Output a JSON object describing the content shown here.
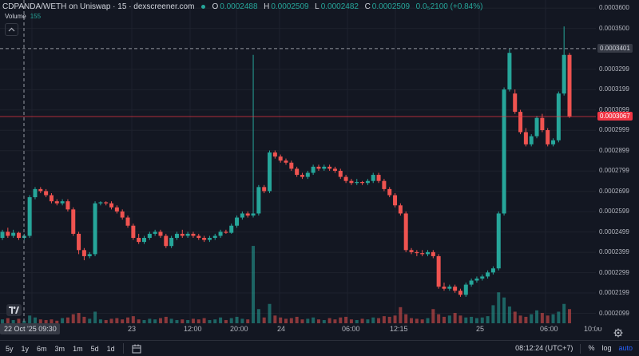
{
  "header": {
    "pair": "CDPANDA/WETH on Uniswap · 15 · dexscreener.com",
    "o_label": "O",
    "o_val": "0.0002488",
    "h_label": "H",
    "h_val": "0.0002509",
    "l_label": "L",
    "l_val": "0.0002482",
    "c_label": "C",
    "c_val": "0.0002509",
    "change": "0.0₅2100 (+0.84%)"
  },
  "volume": {
    "label": "Volume",
    "value": "155"
  },
  "price_axis": {
    "ticks": [
      "0.0003600",
      "0.0003500",
      "0.0003299",
      "0.0003199",
      "0.0003099",
      "0.0002999",
      "0.0002899",
      "0.0002799",
      "0.0002699",
      "0.0002599",
      "0.0002499",
      "0.0002399",
      "0.0002299",
      "0.0002199",
      "0.0002099"
    ],
    "crosshair_tag": "0.0003401",
    "last_price_tag": "0.0003067"
  },
  "time_axis": {
    "labels": [
      "23",
      "12:00",
      "20:00",
      "24",
      "06:00",
      "12:15",
      "25",
      "06:00",
      "10:00"
    ],
    "crosshair_date": "22 Oct '25   09:30"
  },
  "bottom_bar": {
    "ranges": [
      "5y",
      "1y",
      "6m",
      "3m",
      "1m",
      "5d",
      "1d"
    ],
    "clock": "08:12:24 (UTC+7)",
    "percent": "%",
    "log": "log",
    "auto": "auto"
  },
  "colors": {
    "up": "#26a69a",
    "down": "#ef5350",
    "bg": "#131722",
    "grid": "#1e222d",
    "last": "#f23645"
  },
  "chart_data": {
    "type": "candlestick",
    "y_range": [
      0.000205,
      0.000364
    ],
    "candles": [
      [
        0.000247,
        0.000251,
        0.000246,
        0.00025
      ],
      [
        0.00025,
        0.000252,
        0.000247,
        0.000248
      ],
      [
        0.000248,
        0.000251,
        0.000247,
        0.0002495
      ],
      [
        0.0002495,
        0.00025,
        0.000246,
        0.000247
      ],
      [
        0.000247,
        0.000249,
        0.000246,
        0.000248
      ],
      [
        0.000248,
        0.000268,
        0.000247,
        0.000267
      ],
      [
        0.000267,
        0.000272,
        0.000266,
        0.000271
      ],
      [
        0.000271,
        0.000272,
        0.000269,
        0.00027
      ],
      [
        0.00027,
        0.000271,
        0.000267,
        0.000268
      ],
      [
        0.000268,
        0.000269,
        0.000264,
        0.000265
      ],
      [
        0.000265,
        0.000266,
        0.000263,
        0.000264
      ],
      [
        0.000264,
        0.000266,
        0.000263,
        0.000265
      ],
      [
        0.000265,
        0.000266,
        0.00026,
        0.000261
      ],
      [
        0.000261,
        0.000262,
        0.000248,
        0.000249
      ],
      [
        0.000249,
        0.00025,
        0.000239,
        0.000241
      ],
      [
        0.000241,
        0.000242,
        0.000236,
        0.000238
      ],
      [
        0.000238,
        0.00024,
        0.000237,
        0.000239
      ],
      [
        0.000239,
        0.000265,
        0.000238,
        0.000264
      ],
      [
        0.000264,
        0.000265,
        0.000263,
        0.0002645
      ],
      [
        0.0002645,
        0.000265,
        0.000263,
        0.000264
      ],
      [
        0.000264,
        0.000265,
        0.000261,
        0.000262
      ],
      [
        0.000262,
        0.000263,
        0.000259,
        0.00026
      ],
      [
        0.00026,
        0.000261,
        0.000256,
        0.000257
      ],
      [
        0.000257,
        0.000258,
        0.000252,
        0.000253
      ],
      [
        0.000253,
        0.000254,
        0.000246,
        0.000247
      ],
      [
        0.000247,
        0.000249,
        0.000244,
        0.000245
      ],
      [
        0.000245,
        0.000248,
        0.000244,
        0.000247
      ],
      [
        0.000247,
        0.00025,
        0.000246,
        0.000249
      ],
      [
        0.000249,
        0.000251,
        0.000248,
        0.00025
      ],
      [
        0.00025,
        0.000251,
        0.000247,
        0.000248
      ],
      [
        0.000248,
        0.000249,
        0.000242,
        0.000243
      ],
      [
        0.000243,
        0.000248,
        0.000242,
        0.000247
      ],
      [
        0.000247,
        0.00025,
        0.000246,
        0.000249
      ],
      [
        0.000249,
        0.000251,
        0.000247,
        0.000248
      ],
      [
        0.000248,
        0.00025,
        0.000247,
        0.000249
      ],
      [
        0.000249,
        0.00025,
        0.000247,
        0.000248
      ],
      [
        0.000248,
        0.000249,
        0.000246,
        0.000247
      ],
      [
        0.000247,
        0.000248,
        0.000245,
        0.000246
      ],
      [
        0.000246,
        0.000248,
        0.000245,
        0.000247
      ],
      [
        0.000247,
        0.000249,
        0.000246,
        0.000248
      ],
      [
        0.000248,
        0.000251,
        0.000247,
        0.00025
      ],
      [
        0.00025,
        0.000251,
        0.000249,
        0.0002495
      ],
      [
        0.0002495,
        0.000254,
        0.000249,
        0.000253
      ],
      [
        0.000253,
        0.000258,
        0.000252,
        0.000257
      ],
      [
        0.000257,
        0.00026,
        0.000256,
        0.000259
      ],
      [
        0.000259,
        0.00026,
        0.000257,
        0.000258
      ],
      [
        0.000258,
        0.000337,
        0.000257,
        0.000259
      ],
      [
        0.000259,
        0.000273,
        0.000258,
        0.000272
      ],
      [
        0.000272,
        0.000273,
        0.000269,
        0.00027
      ],
      [
        0.00027,
        0.00029,
        0.000269,
        0.000289
      ],
      [
        0.000289,
        0.00029,
        0.000286,
        0.000287
      ],
      [
        0.000287,
        0.000288,
        0.000284,
        0.000285
      ],
      [
        0.000285,
        0.000286,
        0.000283,
        0.000284
      ],
      [
        0.000284,
        0.000285,
        0.00028,
        0.000281
      ],
      [
        0.000281,
        0.000282,
        0.000277,
        0.000278
      ],
      [
        0.000278,
        0.000279,
        0.000276,
        0.000277
      ],
      [
        0.000277,
        0.00028,
        0.000276,
        0.000279
      ],
      [
        0.000279,
        0.000283,
        0.000278,
        0.000282
      ],
      [
        0.000282,
        0.000283,
        0.00028,
        0.000281
      ],
      [
        0.000281,
        0.000283,
        0.00028,
        0.000282
      ],
      [
        0.000282,
        0.000283,
        0.00028,
        0.000281
      ],
      [
        0.000281,
        0.000282,
        0.000279,
        0.00028
      ],
      [
        0.00028,
        0.000281,
        0.000276,
        0.000277
      ],
      [
        0.000277,
        0.000278,
        0.000274,
        0.000275
      ],
      [
        0.000275,
        0.000276,
        0.000273,
        0.000274
      ],
      [
        0.000274,
        0.000276,
        0.000273,
        0.0002745
      ],
      [
        0.0002745,
        0.000275,
        0.000273,
        0.000274
      ],
      [
        0.000274,
        0.000276,
        0.000273,
        0.000275
      ],
      [
        0.000275,
        0.000279,
        0.000274,
        0.000278
      ],
      [
        0.000278,
        0.000279,
        0.000274,
        0.000275
      ],
      [
        0.000275,
        0.000276,
        0.00027,
        0.000271
      ],
      [
        0.000271,
        0.000272,
        0.000267,
        0.000268
      ],
      [
        0.000268,
        0.000269,
        0.000262,
        0.000263
      ],
      [
        0.000263,
        0.000264,
        0.000258,
        0.000259
      ],
      [
        0.000259,
        0.00026,
        0.00024,
        0.000241
      ],
      [
        0.000241,
        0.000242,
        0.000239,
        0.00024
      ],
      [
        0.00024,
        0.000241,
        0.000238,
        0.0002395
      ],
      [
        0.0002395,
        0.000241,
        0.000238,
        0.000239
      ],
      [
        0.000239,
        0.000241,
        0.000238,
        0.00024
      ],
      [
        0.00024,
        0.000241,
        0.000237,
        0.000238
      ],
      [
        0.000238,
        0.000239,
        0.000222,
        0.000223
      ],
      [
        0.000223,
        0.000225,
        0.000221,
        0.000222
      ],
      [
        0.000222,
        0.000224,
        0.000221,
        0.000223
      ],
      [
        0.000223,
        0.000224,
        0.00022,
        0.000221
      ],
      [
        0.000221,
        0.000222,
        0.000218,
        0.000219
      ],
      [
        0.000219,
        0.000225,
        0.000218,
        0.000224
      ],
      [
        0.000224,
        0.000227,
        0.000223,
        0.000226
      ],
      [
        0.000226,
        0.000228,
        0.000225,
        0.000227
      ],
      [
        0.000227,
        0.000229,
        0.000226,
        0.000228
      ],
      [
        0.000228,
        0.000231,
        0.000227,
        0.00023
      ],
      [
        0.00023,
        0.000233,
        0.000229,
        0.000232
      ],
      [
        0.000232,
        0.00026,
        0.000231,
        0.000259
      ],
      [
        0.000259,
        0.000321,
        0.000258,
        0.00032
      ],
      [
        0.00032,
        0.00034,
        0.000319,
        0.000338
      ],
      [
        0.000318,
        0.00032,
        0.000308,
        0.000309
      ],
      [
        0.000309,
        0.00031,
        0.000298,
        0.000299
      ],
      [
        0.000299,
        0.000301,
        0.000292,
        0.000293
      ],
      [
        0.000293,
        0.000298,
        0.000292,
        0.000297
      ],
      [
        0.000297,
        0.000307,
        0.000296,
        0.000306
      ],
      [
        0.000306,
        0.000308,
        0.000299,
        0.0003
      ],
      [
        0.0003,
        0.000301,
        0.000292,
        0.000293
      ],
      [
        0.000293,
        0.000296,
        0.000292,
        0.000295
      ],
      [
        0.000295,
        0.000319,
        0.000294,
        0.000318
      ],
      [
        0.000318,
        0.000351,
        0.000317,
        0.000337
      ],
      [
        0.000337,
        0.000338,
        0.000306,
        0.0003067
      ]
    ],
    "volumes": [
      6,
      8,
      5,
      7,
      4,
      12,
      9,
      6,
      5,
      6,
      4,
      8,
      9,
      14,
      16,
      10,
      7,
      18,
      6,
      5,
      7,
      8,
      6,
      9,
      11,
      6,
      5,
      7,
      6,
      8,
      10,
      7,
      5,
      6,
      5,
      7,
      6,
      8,
      5,
      6,
      9,
      5,
      8,
      10,
      7,
      6,
      120,
      22,
      9,
      30,
      12,
      9,
      7,
      8,
      10,
      6,
      7,
      9,
      6,
      5,
      8,
      6,
      9,
      10,
      6,
      5,
      7,
      6,
      9,
      8,
      11,
      10,
      12,
      25,
      14,
      8,
      7,
      6,
      8,
      22,
      14,
      10,
      12,
      16,
      12,
      9,
      10,
      8,
      9,
      11,
      28,
      48,
      40,
      26,
      18,
      12,
      10,
      14,
      20,
      16,
      12,
      14,
      18,
      30,
      22
    ]
  }
}
